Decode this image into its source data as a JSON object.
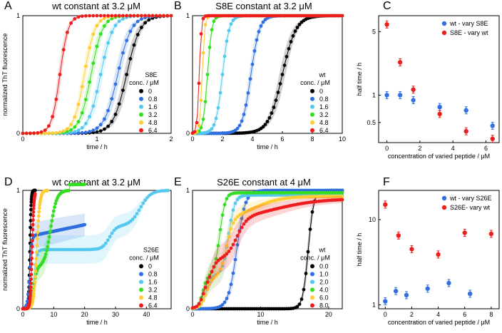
{
  "chart_data": [
    {
      "letter": "A",
      "type": "line",
      "title": "wt constant at 3.2 μM",
      "xlabel": "time / h",
      "ylabel": "normalized ThT fluorescence",
      "xlim": [
        0,
        2
      ],
      "ylim": [
        0,
        1
      ],
      "xticks": [
        0,
        1,
        2
      ],
      "yticks": [
        0,
        1
      ],
      "legend_title": [
        "S8E",
        "conc. / μM"
      ],
      "legend_position": "right",
      "series": [
        {
          "name": "0",
          "color": "#000000",
          "t50": 1.4,
          "k": 11
        },
        {
          "name": "0.8",
          "color": "#2f6fe0",
          "t50": 1.28,
          "k": 11
        },
        {
          "name": "1.6",
          "color": "#55c8f0",
          "t50": 1.05,
          "k": 12
        },
        {
          "name": "3.2",
          "color": "#33dd22",
          "t50": 0.92,
          "k": 13
        },
        {
          "name": "4.8",
          "color": "#ffcc33",
          "t50": 0.83,
          "k": 14
        },
        {
          "name": "6.4",
          "color": "#ee1c1c",
          "t50": 0.5,
          "k": 18
        }
      ]
    },
    {
      "letter": "B",
      "type": "line",
      "title": "S8E constant at 3.2 μM",
      "xlabel": "time / h",
      "ylabel": "",
      "xlim": [
        0,
        10
      ],
      "ylim": [
        0,
        1
      ],
      "xticks": [
        0,
        2,
        4,
        6,
        8,
        10
      ],
      "yticks": [
        0,
        1
      ],
      "legend_title": [
        "wt",
        "conc. / μM"
      ],
      "legend_position": "right",
      "series": [
        {
          "name": "0",
          "color": "#000000",
          "t50": 6.0,
          "k": 2.2
        },
        {
          "name": "0.8",
          "color": "#2f6fe0",
          "t50": 3.9,
          "k": 3.5
        },
        {
          "name": "1.6",
          "color": "#55c8f0",
          "t50": 2.0,
          "k": 4.5
        },
        {
          "name": "3.2",
          "color": "#33dd22",
          "t50": 1.0,
          "k": 7
        },
        {
          "name": "4.8",
          "color": "#ffcc33",
          "t50": 0.65,
          "k": 12
        },
        {
          "name": "6.4",
          "color": "#ee1c1c",
          "t50": 0.45,
          "k": 14
        }
      ]
    },
    {
      "letter": "C",
      "type": "scatter",
      "title": "",
      "xlabel": "concentration of varied peptide / μM",
      "ylabel": "half time / h",
      "yscale": "log",
      "xlim": [
        -0.5,
        6.8
      ],
      "ylim": [
        0.3,
        7.5
      ],
      "xticks": [
        0,
        2,
        4,
        6
      ],
      "yticks": [
        0.5,
        1,
        5
      ],
      "ytick_labels": [
        "0.5",
        "1",
        "5"
      ],
      "legend_position": "top-right",
      "series": [
        {
          "name": "wt - vary S8E",
          "color": "#2f6fe0",
          "x": [
            0,
            0.8,
            1.6,
            3.2,
            4.8,
            6.4
          ],
          "y": [
            1.0,
            1.0,
            0.88,
            0.74,
            0.68,
            0.46
          ]
        },
        {
          "name": "S8E - vary wt",
          "color": "#e8201c",
          "x": [
            0,
            0.8,
            1.6,
            3.2,
            4.8,
            6.4
          ],
          "y": [
            6.0,
            2.3,
            1.15,
            0.62,
            0.4,
            0.33
          ]
        }
      ]
    },
    {
      "letter": "D",
      "type": "line",
      "title": "wt constant at 3.2 μM",
      "xlabel": "time / h",
      "ylabel": "normalized ThT fluorescence",
      "xlim": [
        0,
        48
      ],
      "ylim": [
        0,
        1
      ],
      "xticks": [
        0,
        10,
        20,
        30,
        40
      ],
      "yticks": [
        0,
        1
      ],
      "legend_title": [
        "S26E",
        "conc. / μM"
      ],
      "legend_position": "right",
      "series": [
        {
          "name": "0",
          "color": "#000000"
        },
        {
          "name": "0.8",
          "color": "#2f6fe0"
        },
        {
          "name": "1.6",
          "color": "#55c8f0"
        },
        {
          "name": "3.2",
          "color": "#33dd22"
        },
        {
          "name": "4.8",
          "color": "#ffcc33"
        },
        {
          "name": "6.4",
          "color": "#ee1c1c"
        }
      ]
    },
    {
      "letter": "E",
      "type": "line",
      "title": "S26E constant at 4 μM",
      "xlabel": "time / h",
      "ylabel": "",
      "xlim": [
        0,
        22
      ],
      "ylim": [
        0,
        1
      ],
      "xticks": [
        0,
        10,
        20
      ],
      "yticks": [
        0,
        1
      ],
      "legend_title": [
        "wt",
        "conc. / μM"
      ],
      "legend_position": "right",
      "series": [
        {
          "name": "0.0",
          "color": "#000000"
        },
        {
          "name": "1.0",
          "color": "#2f6fe0"
        },
        {
          "name": "2.0",
          "color": "#55c8f0"
        },
        {
          "name": "4.0",
          "color": "#33dd22"
        },
        {
          "name": "6.0",
          "color": "#ffcc33"
        },
        {
          "name": "8.0",
          "color": "#ee1c1c"
        }
      ]
    },
    {
      "letter": "F",
      "type": "scatter",
      "title": "",
      "xlabel": "concentration of varied peptide / μM",
      "ylabel": "half time / h",
      "yscale": "log",
      "xlim": [
        -0.5,
        8.6
      ],
      "ylim": [
        0.9,
        22
      ],
      "xticks": [
        0,
        2,
        4,
        6,
        8
      ],
      "yticks": [
        1,
        10
      ],
      "ytick_labels": [
        "1",
        "10"
      ],
      "legend_position": "top-right",
      "series": [
        {
          "name": "wt - vary S26E",
          "color": "#2f6fe0",
          "x": [
            0,
            0.8,
            1.6,
            3.2,
            4.8,
            6.4
          ],
          "y": [
            1.1,
            1.45,
            1.3,
            1.55,
            1.8,
            1.35
          ]
        },
        {
          "name": "S26E- vary wt",
          "color": "#e8201c",
          "x": [
            0,
            1,
            2,
            4,
            6,
            8
          ],
          "y": [
            15,
            6.5,
            4.5,
            3.9,
            7.0,
            6.8
          ]
        }
      ]
    }
  ]
}
